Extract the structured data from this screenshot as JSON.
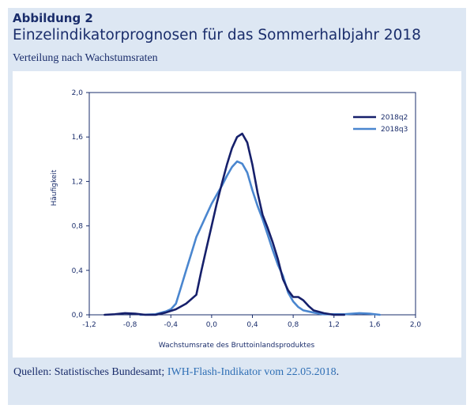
{
  "figure": {
    "label": "Abbildung 2",
    "title": "Einzelindikatorprognosen für das Sommerhalbjahr 2018",
    "subtitle": "Verteilung nach Wachstumsraten"
  },
  "source": {
    "prefix": "Quellen: Statistisches Bundesamt; ",
    "link_text": "IWH-Flash-Indikator vom 22.05.2018",
    "suffix": "."
  },
  "colors": {
    "background_panel": "#dde7f3",
    "text": "#1a2d6b",
    "series_2018q2": "#16206b",
    "series_2018q3": "#4a86cf"
  },
  "chart_data": {
    "type": "line",
    "xlabel": "Wachstumsrate des Bruttoinlandsproduktes",
    "ylabel": "Häufigkeit",
    "xlim": [
      -1.2,
      2.0
    ],
    "ylim": [
      0.0,
      2.0
    ],
    "xticks": [
      "-1,2",
      "-0,8",
      "-0,4",
      "0,0",
      "0,4",
      "0,8",
      "1,2",
      "1,6",
      "2,0"
    ],
    "yticks": [
      "0,0",
      "0,4",
      "0,8",
      "1,2",
      "1,6",
      "2,0"
    ],
    "legend_position": "top-right",
    "grid": false,
    "series": [
      {
        "name": "2018q2",
        "color": "#16206b",
        "points": [
          [
            -1.05,
            0.0
          ],
          [
            -0.95,
            0.005
          ],
          [
            -0.85,
            0.015
          ],
          [
            -0.75,
            0.01
          ],
          [
            -0.65,
            0.0
          ],
          [
            -0.55,
            0.0
          ],
          [
            -0.45,
            0.02
          ],
          [
            -0.35,
            0.05
          ],
          [
            -0.25,
            0.1
          ],
          [
            -0.15,
            0.18
          ],
          [
            -0.1,
            0.4
          ],
          [
            -0.05,
            0.6
          ],
          [
            0.0,
            0.8
          ],
          [
            0.05,
            1.0
          ],
          [
            0.1,
            1.18
          ],
          [
            0.15,
            1.35
          ],
          [
            0.2,
            1.5
          ],
          [
            0.25,
            1.6
          ],
          [
            0.3,
            1.63
          ],
          [
            0.35,
            1.55
          ],
          [
            0.4,
            1.35
          ],
          [
            0.45,
            1.1
          ],
          [
            0.5,
            0.9
          ],
          [
            0.55,
            0.78
          ],
          [
            0.6,
            0.65
          ],
          [
            0.65,
            0.5
          ],
          [
            0.7,
            0.32
          ],
          [
            0.75,
            0.22
          ],
          [
            0.8,
            0.16
          ],
          [
            0.85,
            0.16
          ],
          [
            0.9,
            0.13
          ],
          [
            0.95,
            0.08
          ],
          [
            1.0,
            0.04
          ],
          [
            1.1,
            0.015
          ],
          [
            1.2,
            0.0
          ],
          [
            1.3,
            0.0
          ]
        ]
      },
      {
        "name": "2018q3",
        "color": "#4a86cf",
        "points": [
          [
            -0.7,
            0.0
          ],
          [
            -0.55,
            0.005
          ],
          [
            -0.45,
            0.03
          ],
          [
            -0.4,
            0.05
          ],
          [
            -0.35,
            0.1
          ],
          [
            -0.3,
            0.25
          ],
          [
            -0.25,
            0.4
          ],
          [
            -0.2,
            0.55
          ],
          [
            -0.15,
            0.7
          ],
          [
            -0.1,
            0.8
          ],
          [
            -0.05,
            0.9
          ],
          [
            0.0,
            1.0
          ],
          [
            0.05,
            1.08
          ],
          [
            0.1,
            1.16
          ],
          [
            0.15,
            1.25
          ],
          [
            0.2,
            1.33
          ],
          [
            0.25,
            1.38
          ],
          [
            0.3,
            1.36
          ],
          [
            0.35,
            1.28
          ],
          [
            0.4,
            1.12
          ],
          [
            0.45,
            0.98
          ],
          [
            0.5,
            0.86
          ],
          [
            0.55,
            0.72
          ],
          [
            0.6,
            0.58
          ],
          [
            0.65,
            0.45
          ],
          [
            0.7,
            0.35
          ],
          [
            0.75,
            0.2
          ],
          [
            0.8,
            0.12
          ],
          [
            0.85,
            0.07
          ],
          [
            0.9,
            0.04
          ],
          [
            1.0,
            0.02
          ],
          [
            1.1,
            0.005
          ],
          [
            1.3,
            0.005
          ],
          [
            1.45,
            0.015
          ],
          [
            1.55,
            0.01
          ],
          [
            1.65,
            0.0
          ]
        ]
      }
    ]
  }
}
